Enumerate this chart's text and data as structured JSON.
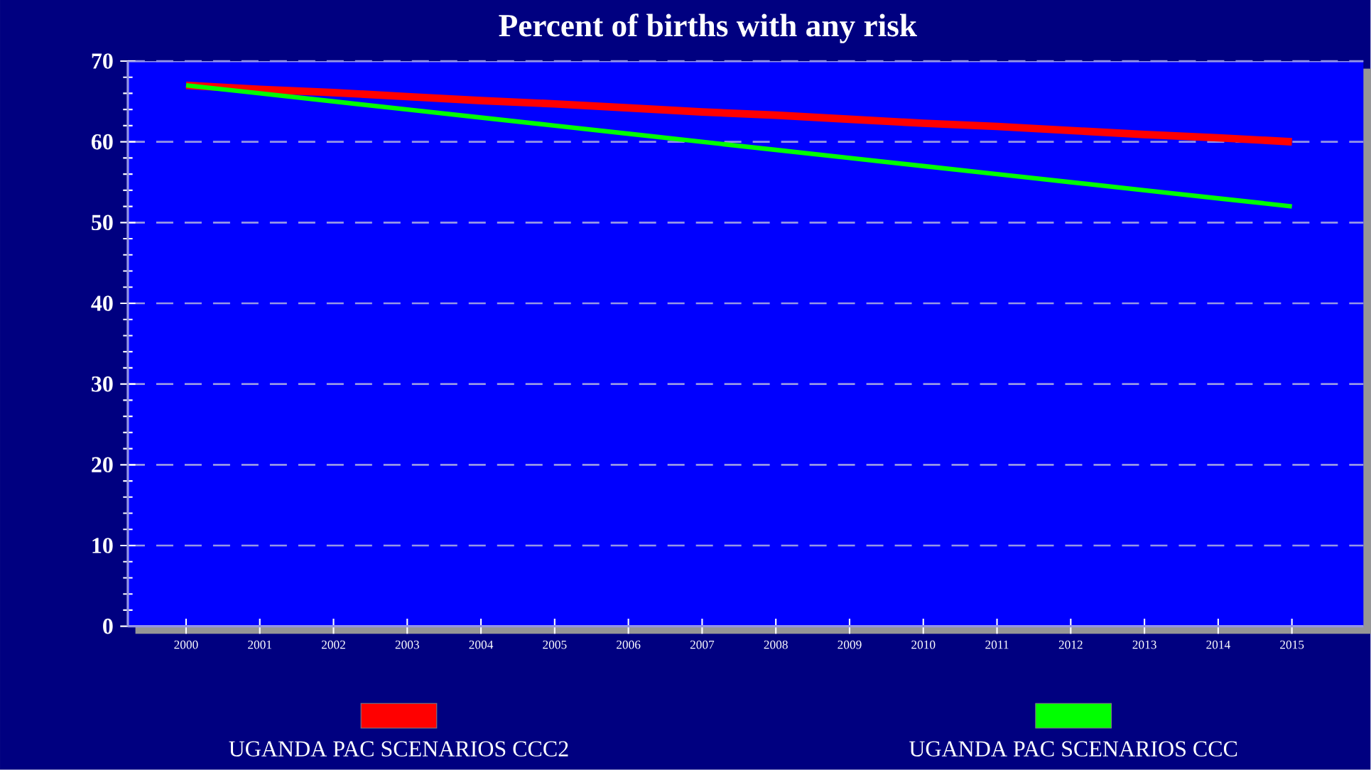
{
  "chart_data": {
    "type": "line",
    "title": "Percent of births with any risk",
    "categories": [
      "2000",
      "2001",
      "2002",
      "2003",
      "2004",
      "2005",
      "2006",
      "2007",
      "2008",
      "2009",
      "2010",
      "2011",
      "2012",
      "2013",
      "2014",
      "2015"
    ],
    "ylim": [
      0,
      70
    ],
    "yticks": [
      0,
      10,
      20,
      30,
      40,
      50,
      60,
      70
    ],
    "grid": "y",
    "legend": "bottom",
    "line_style": "solid",
    "marker": "none",
    "series": [
      {
        "name": "UGANDA PAC SCENARIOS CCC2",
        "color": "#ff0000",
        "values": [
          67,
          66.5,
          66.1,
          65.6,
          65.1,
          64.7,
          64.2,
          63.7,
          63.3,
          62.8,
          62.3,
          61.9,
          61.4,
          60.9,
          60.5,
          60
        ]
      },
      {
        "name": "UGANDA PAC SCENARIOS CCC",
        "color": "#00ff00",
        "values": [
          67,
          66,
          65,
          64,
          63,
          62,
          61,
          60,
          59,
          58,
          57,
          56,
          55,
          54,
          53,
          52
        ]
      }
    ]
  }
}
